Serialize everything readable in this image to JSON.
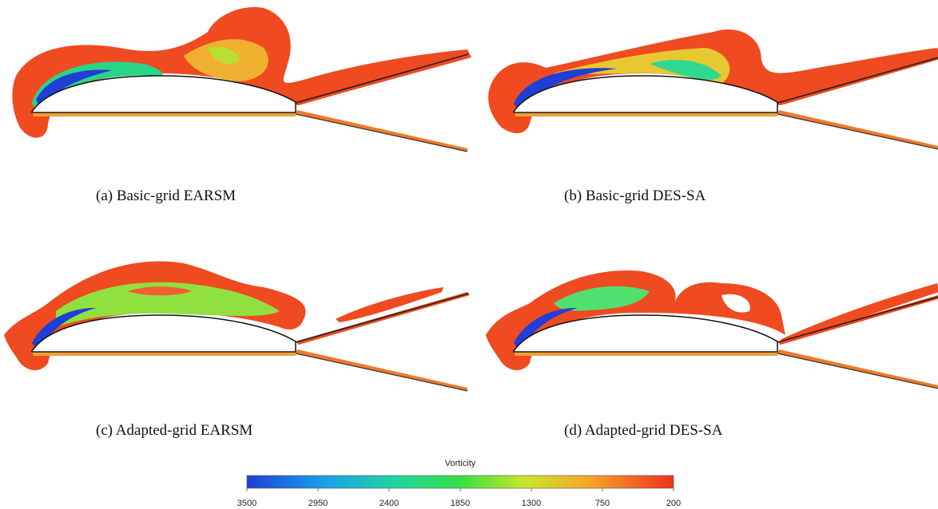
{
  "panels": [
    {
      "caption": "(a) Basic-grid EARSM"
    },
    {
      "caption": "(b) Basic-grid DES-SA"
    },
    {
      "caption": "(c) Adapted-grid EARSM"
    },
    {
      "caption": "(d) Adapted-grid DES-SA"
    }
  ],
  "colorbar": {
    "title": "Vorticity",
    "ticks": [
      3500,
      2950,
      2400,
      1850,
      1300,
      750,
      200
    ]
  }
}
